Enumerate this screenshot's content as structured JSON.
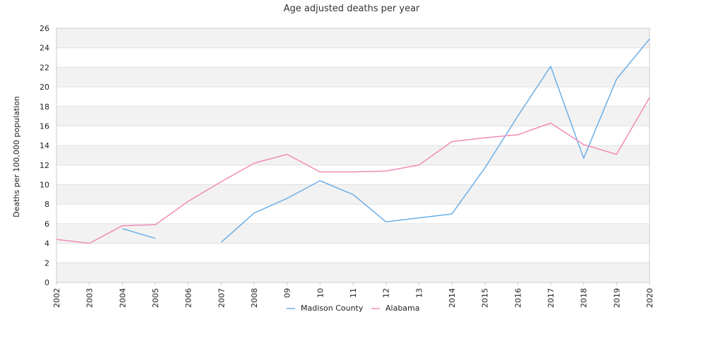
{
  "chart_data": {
    "type": "line",
    "title": "Age adjusted deaths per year",
    "xlabel": "",
    "ylabel": "Deaths per 100,000 population",
    "ylim": [
      0,
      26
    ],
    "ytick_step": 2,
    "grid": "horizontal bands",
    "legend_position": "bottom",
    "categories": [
      "2002",
      "2003",
      "2004",
      "2005",
      "2006",
      "2007",
      "2008",
      "09",
      "10",
      "11",
      "12",
      "13",
      "2014",
      "2015",
      "2016",
      "2017",
      "2018",
      "2019",
      "2020"
    ],
    "series": [
      {
        "name": "Madison County",
        "color": "#6aaee8",
        "values": [
          null,
          null,
          5.5,
          4.5,
          null,
          4.1,
          7.1,
          8.6,
          10.4,
          9.0,
          6.2,
          6.6,
          7.0,
          11.7,
          17.0,
          22.1,
          12.7,
          20.8,
          24.9
        ]
      },
      {
        "name": "Alabama",
        "color": "#f08bb8",
        "values": [
          4.4,
          4.0,
          5.8,
          5.9,
          8.3,
          10.3,
          12.2,
          13.1,
          11.3,
          11.3,
          11.4,
          12.0,
          14.4,
          14.8,
          15.1,
          16.3,
          14.1,
          13.1,
          18.9
        ]
      }
    ]
  }
}
